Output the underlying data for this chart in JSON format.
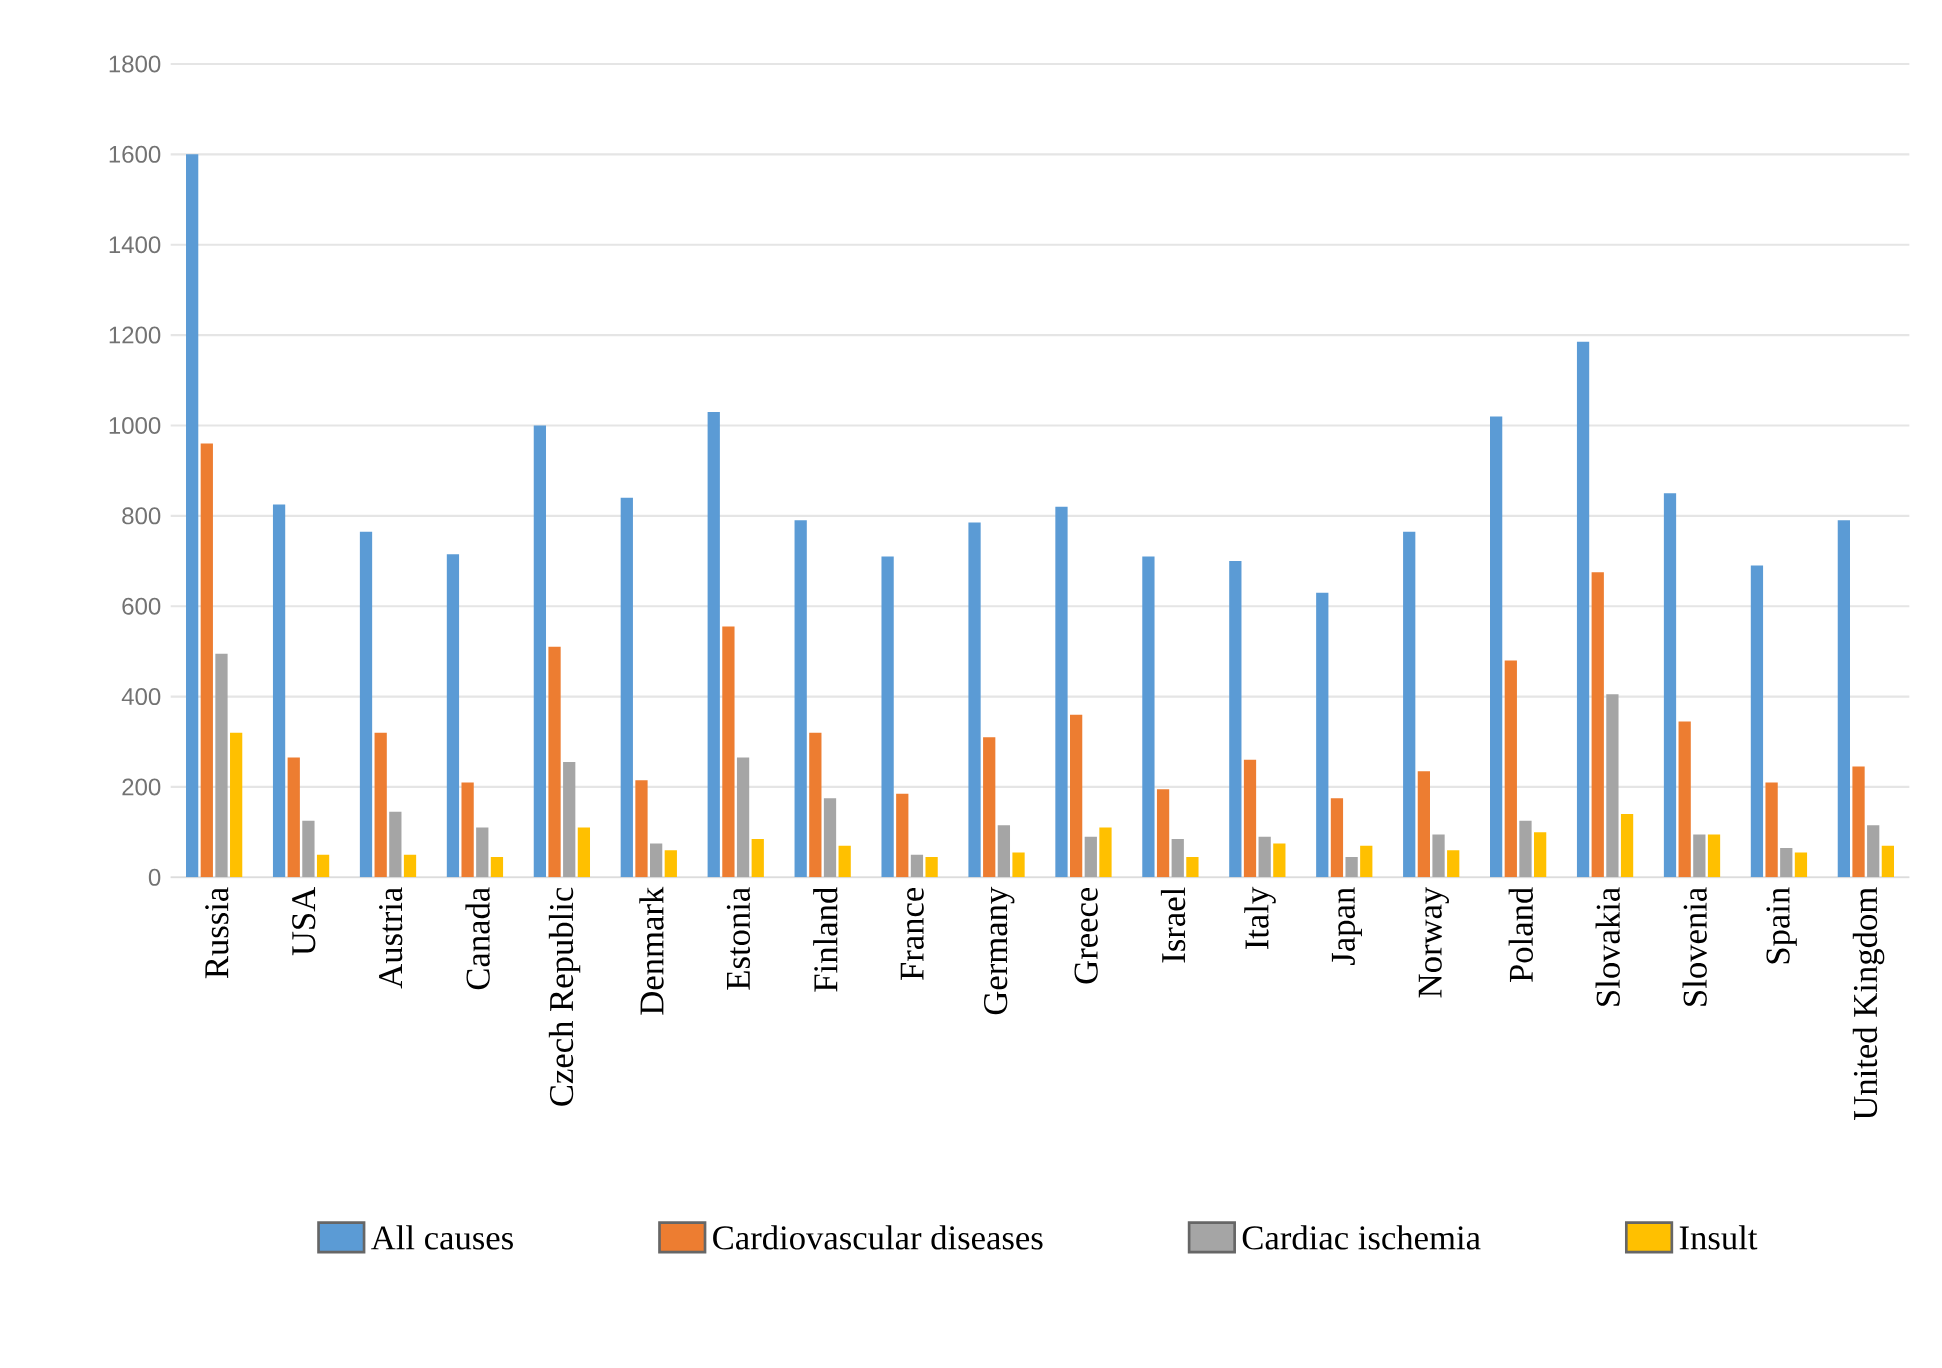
{
  "chart_data": {
    "type": "bar",
    "categories": [
      "Russia",
      "USA",
      "Austria",
      "Canada",
      "Czech Republic",
      "Denmark",
      "Estonia",
      "Finland",
      "France",
      "Germany",
      "Greece",
      "Israel",
      "Italy",
      "Japan",
      "Norway",
      "Poland",
      "Slovakia",
      "Slovenia",
      "Spain",
      "United Kingdom"
    ],
    "series": [
      {
        "name": "All causes",
        "color": "#5b9bd5",
        "values": [
          1600,
          825,
          765,
          715,
          1000,
          840,
          1030,
          790,
          710,
          785,
          820,
          710,
          700,
          630,
          765,
          1020,
          1185,
          850,
          690,
          790
        ]
      },
      {
        "name": "Cardiovascular diseases",
        "color": "#ed7d31",
        "values": [
          960,
          265,
          320,
          210,
          510,
          215,
          555,
          320,
          185,
          310,
          360,
          195,
          260,
          175,
          235,
          480,
          675,
          345,
          210,
          245
        ]
      },
      {
        "name": "Cardiac ischemia",
        "color": "#a5a5a5",
        "values": [
          495,
          125,
          145,
          110,
          255,
          75,
          265,
          175,
          50,
          115,
          90,
          85,
          90,
          45,
          95,
          125,
          405,
          95,
          65,
          115
        ]
      },
      {
        "name": "Insult",
        "color": "#ffc000",
        "values": [
          320,
          50,
          50,
          45,
          110,
          60,
          85,
          70,
          45,
          55,
          110,
          45,
          75,
          70,
          60,
          100,
          140,
          95,
          55,
          70
        ]
      }
    ],
    "ylim": [
      0,
      1800
    ],
    "yticks": [
      0,
      200,
      400,
      600,
      800,
      1000,
      1200,
      1400,
      1600,
      1800
    ],
    "grid": "y",
    "legend": "bottom"
  }
}
